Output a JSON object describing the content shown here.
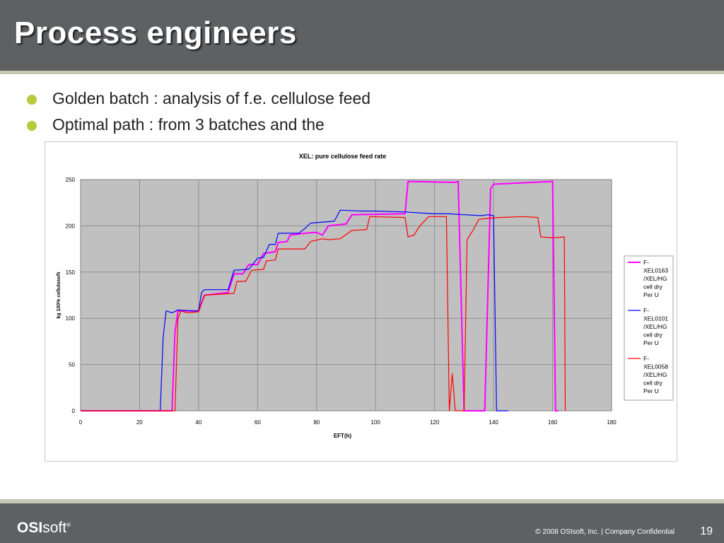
{
  "slide": {
    "title": "Process engineers",
    "bullets": [
      "Golden batch : analysis of f.e. cellulose feed",
      "Optimal path : from 3 batches and the"
    ]
  },
  "footer": {
    "logo_bold": "OSI",
    "logo_light": "soft",
    "logo_mark": "®",
    "copyright": "© 2008 OSIsoft, Inc.  |  Company Confidential",
    "page_number": "19"
  },
  "chart_data": {
    "type": "line",
    "title": "XEL: pure cellulose feed rate",
    "xlabel": "EFT(h)",
    "ylabel": "kg 100% cellulose/h",
    "xlim": [
      0,
      180
    ],
    "ylim": [
      0,
      250
    ],
    "x_ticks": [
      0,
      20,
      40,
      60,
      80,
      100,
      120,
      140,
      160,
      180
    ],
    "y_ticks": [
      0,
      50,
      100,
      150,
      200,
      250
    ],
    "grid": true,
    "legend": "right",
    "series": [
      {
        "name": "F-XEL0163/XEL/HG cell dry Per U",
        "legend_lines": [
          "F-",
          "XEL0163",
          "/XEL/HG",
          "cell dry",
          "Per U"
        ],
        "color": "#ff00ff",
        "points": [
          [
            0,
            0
          ],
          [
            31,
            0
          ],
          [
            32,
            85
          ],
          [
            33,
            108
          ],
          [
            40,
            108
          ],
          [
            42,
            125
          ],
          [
            50,
            128
          ],
          [
            52,
            148
          ],
          [
            55,
            148
          ],
          [
            57,
            158
          ],
          [
            60,
            158
          ],
          [
            62,
            170
          ],
          [
            66,
            172
          ],
          [
            67,
            182
          ],
          [
            70,
            183
          ],
          [
            71,
            190
          ],
          [
            76,
            192
          ],
          [
            80,
            193
          ],
          [
            82,
            190
          ],
          [
            84,
            200
          ],
          [
            90,
            202
          ],
          [
            92,
            212
          ],
          [
            110,
            213
          ],
          [
            111,
            248
          ],
          [
            127,
            247
          ],
          [
            128,
            248
          ],
          [
            130,
            0
          ],
          [
            137,
            0
          ],
          [
            139,
            240
          ],
          [
            140,
            245
          ],
          [
            160,
            248
          ],
          [
            161,
            0
          ],
          [
            162,
            0
          ]
        ]
      },
      {
        "name": "F-XEL0101/XEL/HG cell dry Per U",
        "legend_lines": [
          "F-",
          "XEL0101",
          "/XEL/HG",
          "cell dry",
          "Per U"
        ],
        "color": "#0000ff",
        "points": [
          [
            0,
            0
          ],
          [
            27,
            0
          ],
          [
            28,
            80
          ],
          [
            29,
            108
          ],
          [
            31,
            106
          ],
          [
            33,
            109
          ],
          [
            38,
            108
          ],
          [
            40,
            108
          ],
          [
            41,
            128
          ],
          [
            42,
            131
          ],
          [
            50,
            131
          ],
          [
            52,
            152
          ],
          [
            57,
            153
          ],
          [
            60,
            165
          ],
          [
            62,
            166
          ],
          [
            64,
            180
          ],
          [
            66,
            180
          ],
          [
            67,
            192
          ],
          [
            74,
            192
          ],
          [
            76,
            197
          ],
          [
            78,
            203
          ],
          [
            86,
            205
          ],
          [
            88,
            217
          ],
          [
            95,
            216
          ],
          [
            100,
            216
          ],
          [
            110,
            215
          ],
          [
            115,
            214
          ],
          [
            120,
            213
          ],
          [
            125,
            213
          ],
          [
            130,
            212
          ],
          [
            136,
            211
          ],
          [
            138,
            212
          ],
          [
            140,
            211
          ],
          [
            141,
            0
          ],
          [
            145,
            0
          ]
        ]
      },
      {
        "name": "F-XEL0058/XEL/HG cell dry Per U",
        "legend_lines": [
          "F-",
          "XEL0058",
          "/XEL/HG",
          "cell dry",
          "Per U"
        ],
        "color": "#ff0000",
        "points": [
          [
            0,
            0
          ],
          [
            32,
            0
          ],
          [
            33,
            100
          ],
          [
            34,
            108
          ],
          [
            36,
            106
          ],
          [
            40,
            107
          ],
          [
            42,
            125
          ],
          [
            52,
            127
          ],
          [
            53,
            140
          ],
          [
            56,
            140
          ],
          [
            58,
            152
          ],
          [
            62,
            153
          ],
          [
            63,
            162
          ],
          [
            66,
            163
          ],
          [
            67,
            175
          ],
          [
            76,
            175
          ],
          [
            78,
            183
          ],
          [
            82,
            186
          ],
          [
            84,
            185
          ],
          [
            88,
            186
          ],
          [
            92,
            195
          ],
          [
            97,
            196
          ],
          [
            98,
            210
          ],
          [
            110,
            209
          ],
          [
            111,
            188
          ],
          [
            113,
            190
          ],
          [
            115,
            200
          ],
          [
            118,
            210
          ],
          [
            124,
            210
          ],
          [
            125,
            0
          ],
          [
            126,
            40
          ],
          [
            127,
            0
          ],
          [
            130,
            0
          ],
          [
            131,
            185
          ],
          [
            133,
            195
          ],
          [
            135,
            207
          ],
          [
            138,
            208
          ],
          [
            142,
            209
          ],
          [
            150,
            210
          ],
          [
            155,
            209
          ],
          [
            156,
            188
          ],
          [
            160,
            187
          ],
          [
            164,
            188
          ],
          [
            164.3,
            0
          ]
        ]
      }
    ]
  }
}
